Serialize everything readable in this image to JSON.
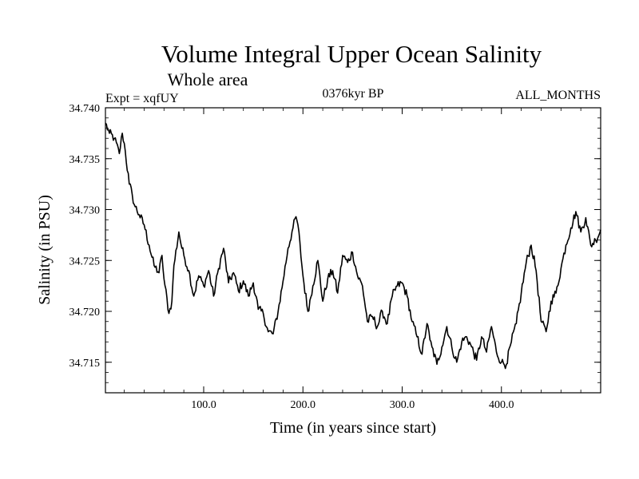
{
  "chart_data": {
    "type": "line",
    "title": "Volume Integral Upper Ocean Salinity",
    "subtitle": "Whole area",
    "experiment": "Expt = xqfUY",
    "period": "0376kyr BP",
    "months": "ALL_MONTHS",
    "xlabel": "Time (in years since start)",
    "ylabel": "Salinity (in PSU)",
    "xlim": [
      1,
      500
    ],
    "ylim": [
      34.712,
      34.74
    ],
    "xticks": [
      100,
      200,
      300,
      400
    ],
    "xtick_labels": [
      "100.0",
      "200.0",
      "300.0",
      "400.0"
    ],
    "yticks": [
      34.715,
      34.72,
      34.725,
      34.73,
      34.735,
      34.74
    ],
    "ytick_labels": [
      "34.715",
      "34.720",
      "34.725",
      "34.730",
      "34.735",
      "34.740"
    ],
    "grid": false,
    "line_color": "#000000",
    "series": [
      {
        "name": "salinity",
        "x": [
          1,
          5,
          10,
          15,
          18,
          20,
          25,
          28,
          30,
          35,
          40,
          45,
          50,
          55,
          58,
          60,
          65,
          68,
          70,
          75,
          78,
          80,
          85,
          90,
          95,
          100,
          105,
          110,
          115,
          120,
          125,
          130,
          135,
          140,
          145,
          150,
          155,
          160,
          165,
          170,
          175,
          180,
          185,
          190,
          193,
          195,
          200,
          205,
          210,
          215,
          220,
          225,
          230,
          235,
          240,
          245,
          250,
          255,
          260,
          265,
          270,
          275,
          280,
          285,
          290,
          295,
          300,
          305,
          310,
          315,
          320,
          325,
          328,
          330,
          335,
          340,
          345,
          350,
          355,
          360,
          365,
          370,
          375,
          380,
          385,
          390,
          395,
          400,
          405,
          410,
          415,
          420,
          425,
          430,
          435,
          440,
          445,
          450,
          455,
          460,
          465,
          470,
          475,
          480,
          485,
          490,
          495,
          500
        ],
        "values": [
          34.7385,
          34.7375,
          34.737,
          34.7355,
          34.7375,
          34.7365,
          34.7325,
          34.7315,
          34.7305,
          34.7295,
          34.7285,
          34.7265,
          34.7245,
          34.7238,
          34.7255,
          34.7232,
          34.7198,
          34.721,
          34.7245,
          34.7278,
          34.7262,
          34.7255,
          34.724,
          34.7215,
          34.7235,
          34.7225,
          34.724,
          34.7215,
          34.7242,
          34.7262,
          34.7228,
          34.7238,
          34.722,
          34.723,
          34.7215,
          34.7228,
          34.7202,
          34.7198,
          34.718,
          34.7178,
          34.72,
          34.723,
          34.7262,
          34.7282,
          34.7293,
          34.7285,
          34.7235,
          34.72,
          34.7225,
          34.725,
          34.721,
          34.7232,
          34.724,
          34.7218,
          34.7255,
          34.7248,
          34.7258,
          34.7235,
          34.7225,
          34.719,
          34.7195,
          34.7185,
          34.72,
          34.7188,
          34.7215,
          34.7225,
          34.7228,
          34.7215,
          34.719,
          34.7175,
          34.7158,
          34.7188,
          34.7172,
          34.7165,
          34.7148,
          34.7165,
          34.7185,
          34.7165,
          34.715,
          34.717,
          34.7175,
          34.7165,
          34.7152,
          34.7175,
          34.716,
          34.7185,
          34.716,
          34.715,
          34.7148,
          34.717,
          34.7188,
          34.7218,
          34.7248,
          34.7265,
          34.724,
          34.719,
          34.718,
          34.721,
          34.7218,
          34.7242,
          34.7265,
          34.7282,
          34.7298,
          34.7278,
          34.7292,
          34.7265,
          34.727,
          34.728
        ]
      }
    ]
  }
}
